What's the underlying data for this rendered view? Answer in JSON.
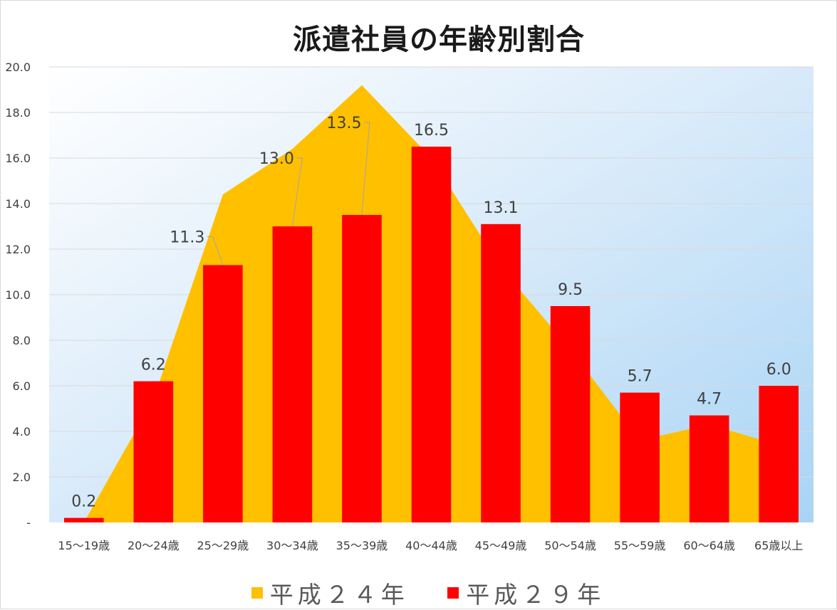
{
  "chart_data": {
    "type": "bar",
    "title": "派遣社員の年齢別割合",
    "categories": [
      "15～19歳",
      "20～24歳",
      "25～29歳",
      "30～34歳",
      "35～39歳",
      "40～44歳",
      "45～49歳",
      "50～54歳",
      "55～59歳",
      "60～64歳",
      "65歳以上"
    ],
    "ylim": [
      0,
      20
    ],
    "yticks": [
      0,
      2,
      4,
      6,
      8,
      10,
      12,
      14,
      16,
      18,
      20
    ],
    "ytick_labels": [
      "-",
      "2.0",
      "4.0",
      "6.0",
      "8.0",
      "10.0",
      "12.0",
      "14.0",
      "16.0",
      "18.0",
      "20.0"
    ],
    "grid": true,
    "legend_position": "bottom",
    "series": [
      {
        "name": "平成２４年",
        "kind": "area",
        "color": "#ffc000",
        "values": [
          0.0,
          5.4,
          14.4,
          16.4,
          19.2,
          16.0,
          11.2,
          7.6,
          3.6,
          4.3,
          3.4
        ]
      },
      {
        "name": "平成２９年",
        "kind": "bar",
        "color": "#ff0000",
        "values": [
          0.2,
          6.2,
          11.3,
          13.0,
          13.5,
          16.5,
          13.1,
          9.5,
          5.7,
          4.7,
          6.0
        ],
        "data_labels": [
          "0.2",
          "6.2",
          "11.3",
          "13.0",
          "13.5",
          "16.5",
          "13.1",
          "9.5",
          "5.7",
          "4.7",
          "6.0"
        ]
      }
    ]
  },
  "legend": {
    "item1": "平成２４年",
    "item2": "平成２９年"
  }
}
